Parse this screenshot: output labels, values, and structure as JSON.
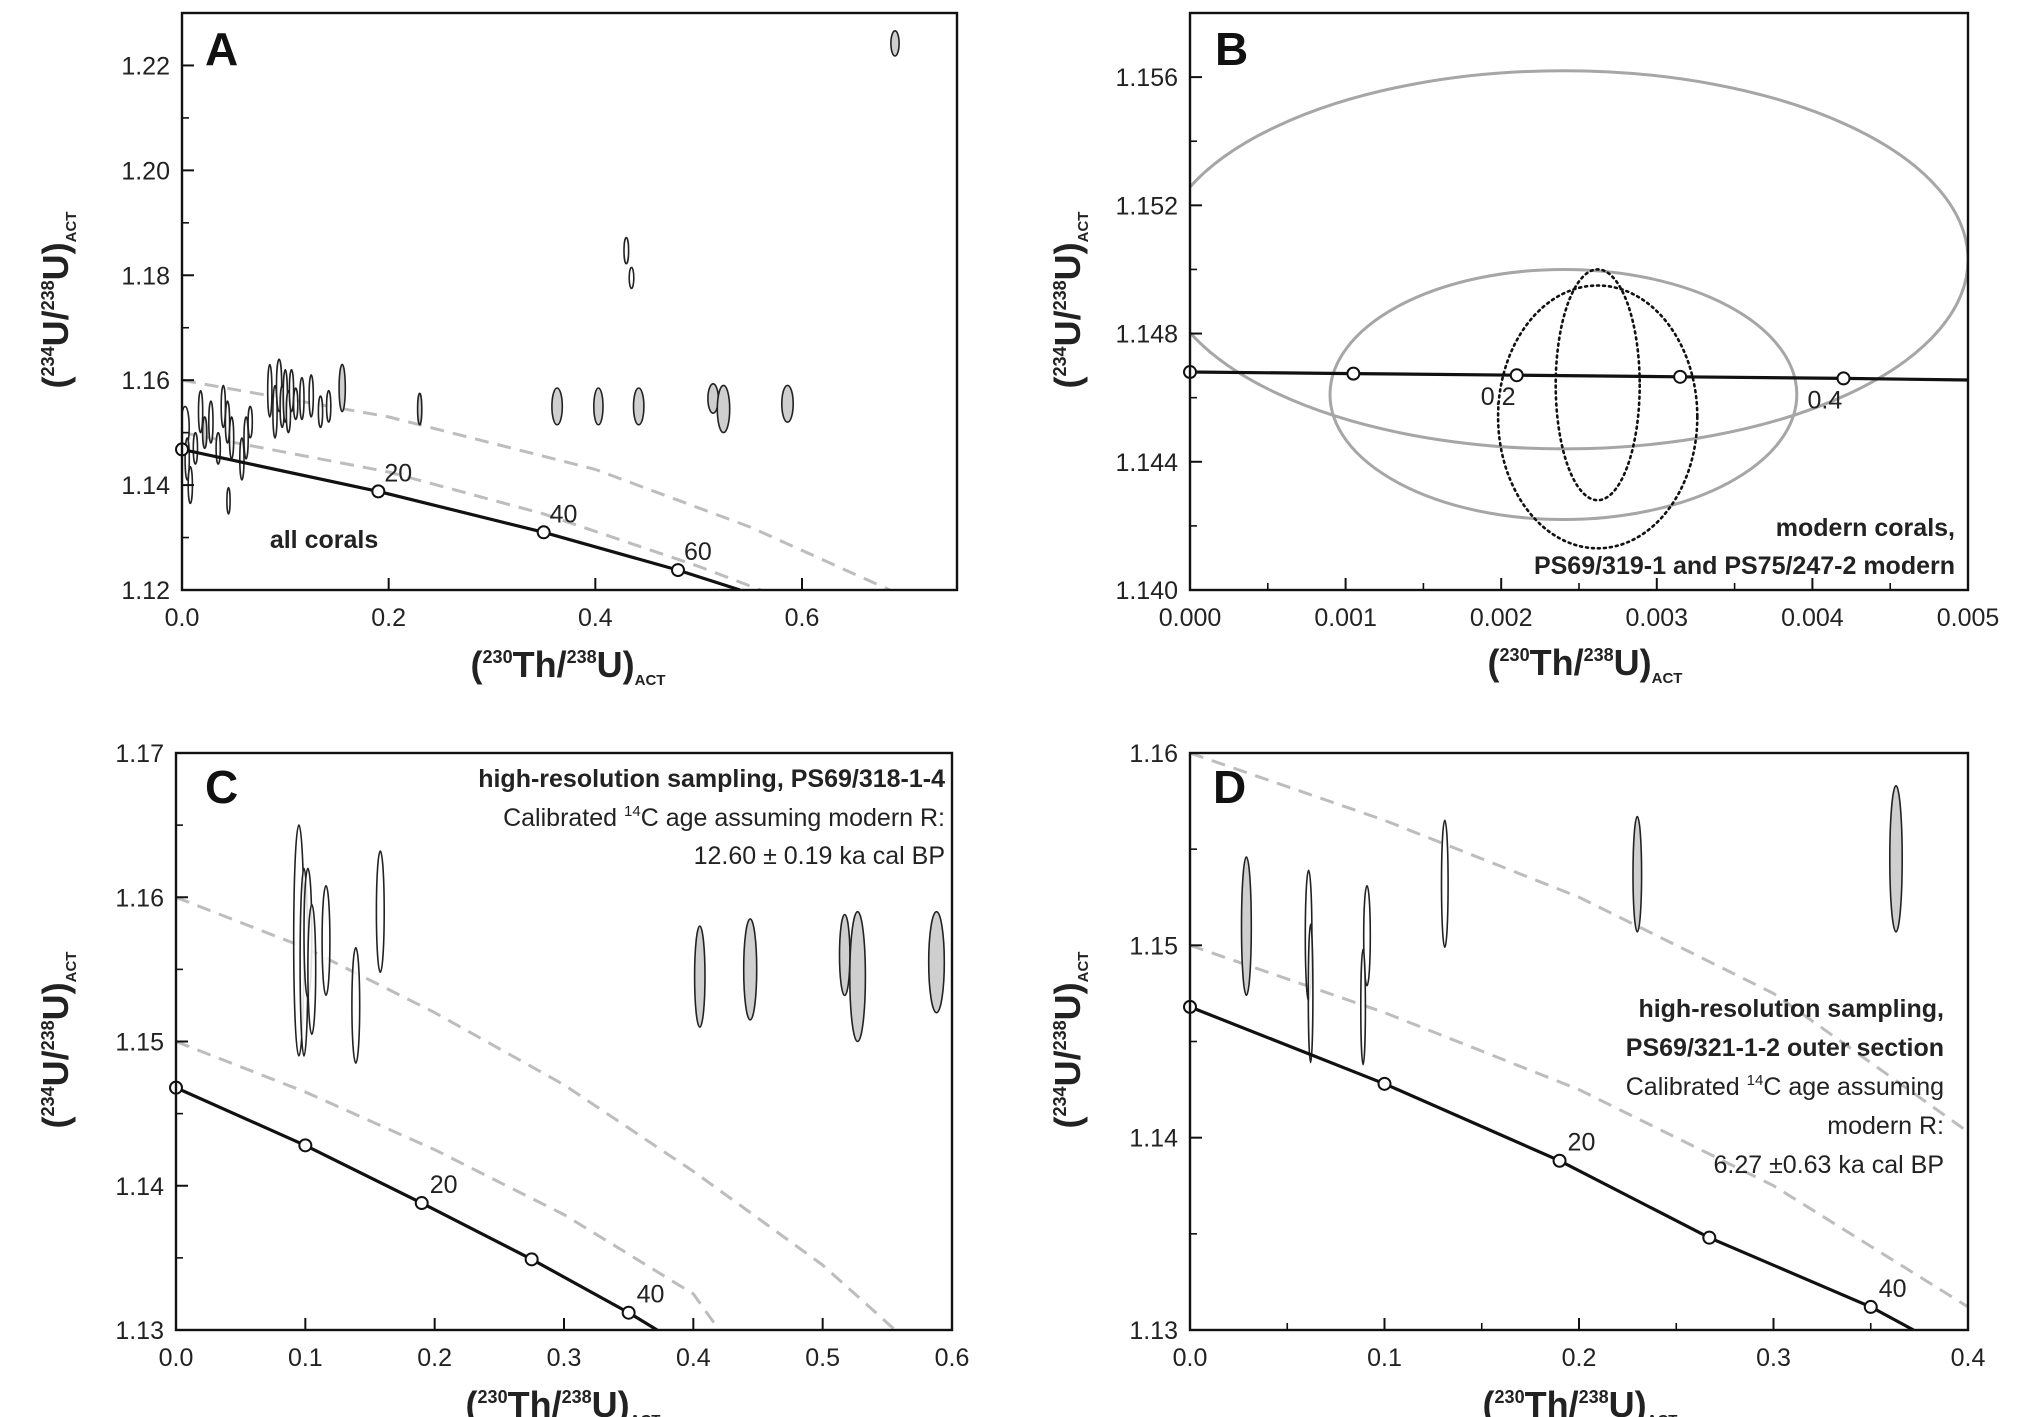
{
  "chart_data": [
    {
      "type": "scatter",
      "panel": "A",
      "xlabel_parts": [
        "(",
        "230",
        "Th/",
        "238",
        "U)",
        "ACT"
      ],
      "ylabel_parts": [
        "(",
        "234",
        "U/",
        "238",
        "U)",
        "ACT"
      ],
      "xlim": [
        0,
        0.75
      ],
      "ylim": [
        1.12,
        1.23
      ],
      "xticks": [
        0.0,
        0.2,
        0.4,
        0.6
      ],
      "xtick_labels": [
        "0.0",
        "0.2",
        "0.4",
        "0.6"
      ],
      "yticks": [
        1.12,
        1.14,
        1.16,
        1.18,
        1.2,
        1.22
      ],
      "ytick_labels": [
        "1.12",
        "1.14",
        "1.16",
        "1.18",
        "1.20",
        "1.22"
      ],
      "annotations": [
        {
          "text": "all corals",
          "bold": true,
          "x": 0.085,
          "y": 1.128
        }
      ],
      "evolution_curve": {
        "initial_ratio": 1.1468,
        "points": [
          {
            "x": 0.0,
            "y": 1.1468
          },
          {
            "x": 0.19,
            "y": 1.1388,
            "label": "20"
          },
          {
            "x": 0.35,
            "y": 1.131,
            "label": "40"
          },
          {
            "x": 0.48,
            "y": 1.1238,
            "label": "60"
          },
          {
            "x": 0.54,
            "y": 1.12
          }
        ]
      },
      "reference_curves": [
        [
          {
            "x": 0.0,
            "y": 1.16
          },
          {
            "x": 0.2,
            "y": 1.153
          },
          {
            "x": 0.4,
            "y": 1.143
          },
          {
            "x": 0.55,
            "y": 1.132
          },
          {
            "x": 0.685,
            "y": 1.12
          }
        ],
        [
          {
            "x": 0.0,
            "y": 1.15
          },
          {
            "x": 0.2,
            "y": 1.1425
          },
          {
            "x": 0.35,
            "y": 1.1345
          },
          {
            "x": 0.5,
            "y": 1.1245
          },
          {
            "x": 0.56,
            "y": 1.12
          }
        ]
      ],
      "ellipses": [
        {
          "x": 0.69,
          "y": 1.2242,
          "dx": 0.004,
          "dy": 0.0024,
          "filled": true
        },
        {
          "x": 0.43,
          "y": 1.1847,
          "dx": 0.0022,
          "dy": 0.0025,
          "filled": false
        },
        {
          "x": 0.435,
          "y": 1.1795,
          "dx": 0.0022,
          "dy": 0.002,
          "filled": false
        },
        {
          "x": 0.363,
          "y": 1.155,
          "dx": 0.005,
          "dy": 0.0035,
          "filled": true
        },
        {
          "x": 0.403,
          "y": 1.155,
          "dx": 0.0045,
          "dy": 0.0035,
          "filled": true
        },
        {
          "x": 0.442,
          "y": 1.155,
          "dx": 0.005,
          "dy": 0.0035,
          "filled": true
        },
        {
          "x": 0.514,
          "y": 1.1565,
          "dx": 0.005,
          "dy": 0.0028,
          "filled": true
        },
        {
          "x": 0.524,
          "y": 1.1545,
          "dx": 0.006,
          "dy": 0.0045,
          "filled": true
        },
        {
          "x": 0.586,
          "y": 1.1555,
          "dx": 0.0055,
          "dy": 0.0035,
          "filled": true
        },
        {
          "x": 0.23,
          "y": 1.1545,
          "dx": 0.002,
          "dy": 0.003,
          "filled": true
        },
        {
          "x": 0.155,
          "y": 1.1585,
          "dx": 0.003,
          "dy": 0.0045,
          "filled": true
        },
        {
          "x": 0.003,
          "y": 1.151,
          "dx": 0.004,
          "dy": 0.004,
          "filled": false
        },
        {
          "x": 0.005,
          "y": 1.145,
          "dx": 0.002,
          "dy": 0.004,
          "filled": false
        },
        {
          "x": 0.008,
          "y": 1.14,
          "dx": 0.002,
          "dy": 0.0035,
          "filled": false
        },
        {
          "x": 0.013,
          "y": 1.147,
          "dx": 0.002,
          "dy": 0.003,
          "filled": false
        },
        {
          "x": 0.018,
          "y": 1.154,
          "dx": 0.002,
          "dy": 0.004,
          "filled": false
        },
        {
          "x": 0.022,
          "y": 1.15,
          "dx": 0.002,
          "dy": 0.003,
          "filled": true
        },
        {
          "x": 0.028,
          "y": 1.152,
          "dx": 0.002,
          "dy": 0.004,
          "filled": false
        },
        {
          "x": 0.035,
          "y": 1.147,
          "dx": 0.002,
          "dy": 0.003,
          "filled": false
        },
        {
          "x": 0.04,
          "y": 1.155,
          "dx": 0.002,
          "dy": 0.004,
          "filled": false
        },
        {
          "x": 0.044,
          "y": 1.152,
          "dx": 0.002,
          "dy": 0.004,
          "filled": false
        },
        {
          "x": 0.048,
          "y": 1.149,
          "dx": 0.002,
          "dy": 0.004,
          "filled": false
        },
        {
          "x": 0.045,
          "y": 1.137,
          "dx": 0.0015,
          "dy": 0.0025,
          "filled": false
        },
        {
          "x": 0.058,
          "y": 1.145,
          "dx": 0.002,
          "dy": 0.004,
          "filled": false
        },
        {
          "x": 0.062,
          "y": 1.149,
          "dx": 0.002,
          "dy": 0.004,
          "filled": false
        },
        {
          "x": 0.066,
          "y": 1.152,
          "dx": 0.002,
          "dy": 0.003,
          "filled": false
        },
        {
          "x": 0.085,
          "y": 1.158,
          "dx": 0.002,
          "dy": 0.005,
          "filled": false
        },
        {
          "x": 0.09,
          "y": 1.154,
          "dx": 0.002,
          "dy": 0.005,
          "filled": false
        },
        {
          "x": 0.094,
          "y": 1.159,
          "dx": 0.0025,
          "dy": 0.005,
          "filled": false
        },
        {
          "x": 0.097,
          "y": 1.155,
          "dx": 0.002,
          "dy": 0.004,
          "filled": false
        },
        {
          "x": 0.1,
          "y": 1.157,
          "dx": 0.002,
          "dy": 0.005,
          "filled": false
        },
        {
          "x": 0.103,
          "y": 1.154,
          "dx": 0.002,
          "dy": 0.004,
          "filled": false
        },
        {
          "x": 0.106,
          "y": 1.158,
          "dx": 0.002,
          "dy": 0.004,
          "filled": false
        },
        {
          "x": 0.11,
          "y": 1.1555,
          "dx": 0.002,
          "dy": 0.003,
          "filled": false
        },
        {
          "x": 0.116,
          "y": 1.1565,
          "dx": 0.002,
          "dy": 0.004,
          "filled": false
        },
        {
          "x": 0.125,
          "y": 1.157,
          "dx": 0.002,
          "dy": 0.004,
          "filled": false
        },
        {
          "x": 0.134,
          "y": 1.154,
          "dx": 0.002,
          "dy": 0.003,
          "filled": false
        },
        {
          "x": 0.142,
          "y": 1.155,
          "dx": 0.002,
          "dy": 0.003,
          "filled": false
        }
      ]
    },
    {
      "type": "scatter",
      "panel": "B",
      "xlabel_parts": [
        "(",
        "230",
        "Th/",
        "238",
        "U)",
        "ACT"
      ],
      "ylabel_parts": [
        "(",
        "234",
        "U/",
        "238",
        "U)",
        "ACT"
      ],
      "xlim": [
        0,
        0.005
      ],
      "ylim": [
        1.14,
        1.158
      ],
      "xticks": [
        0.0,
        0.001,
        0.002,
        0.003,
        0.004,
        0.005
      ],
      "xtick_labels": [
        "0.000",
        "0.001",
        "0.002",
        "0.003",
        "0.004",
        "0.005"
      ],
      "yticks": [
        1.14,
        1.144,
        1.148,
        1.152,
        1.156
      ],
      "ytick_labels": [
        "1.140",
        "1.144",
        "1.148",
        "1.152",
        "1.156"
      ],
      "annotations": [
        {
          "text": "modern corals,",
          "bold": true
        },
        {
          "text": "PS69/319-1 and PS75/247-2 modern",
          "bold": true
        }
      ],
      "evolution_curve": {
        "initial_ratio": 1.1468,
        "points": [
          {
            "x": 0.0,
            "y": 1.1468
          },
          {
            "x": 0.00105,
            "y": 1.14675
          },
          {
            "x": 0.0021,
            "y": 1.1467,
            "label": "0.2"
          },
          {
            "x": 0.00315,
            "y": 1.14665
          },
          {
            "x": 0.0042,
            "y": 1.1466,
            "label": "0.4"
          },
          {
            "x": 0.005,
            "y": 1.14655
          }
        ]
      },
      "ellipses": [
        {
          "x": 0.0024,
          "y": 1.1503,
          "dx": 0.0026,
          "dy": 0.0059,
          "style": "gray"
        },
        {
          "x": 0.0024,
          "y": 1.1461,
          "dx": 0.0015,
          "dy": 0.0039,
          "style": "gray"
        },
        {
          "x": 0.00262,
          "y": 1.1464,
          "dx": 0.00027,
          "dy": 0.0036,
          "style": "dotted"
        },
        {
          "x": 0.00262,
          "y": 1.1454,
          "dx": 0.00064,
          "dy": 0.0041,
          "style": "dotted"
        }
      ]
    },
    {
      "type": "scatter",
      "panel": "C",
      "xlabel_parts": [
        "(",
        "230",
        "Th/",
        "238",
        "U)",
        "ACT"
      ],
      "ylabel_parts": [
        "(",
        "234",
        "U/",
        "238",
        "U)",
        "ACT"
      ],
      "xlim": [
        0,
        0.6
      ],
      "ylim": [
        1.13,
        1.17
      ],
      "xticks": [
        0.0,
        0.1,
        0.2,
        0.3,
        0.4,
        0.5,
        0.6
      ],
      "xtick_labels": [
        "0.0",
        "0.1",
        "0.2",
        "0.3",
        "0.4",
        "0.5",
        "0.6"
      ],
      "yticks": [
        1.13,
        1.14,
        1.15,
        1.16,
        1.17
      ],
      "ytick_labels": [
        "1.13",
        "1.14",
        "1.15",
        "1.16",
        "1.17"
      ],
      "annotations": [
        {
          "text": "high-resolution sampling, PS69/318-1-4",
          "bold": true
        },
        {
          "text": "Calibrated ",
          "sup": "14",
          "text2": "C age assuming modern R:",
          "bold": false
        },
        {
          "text": "12.60 ± 0.19 ka cal BP",
          "bold": false
        }
      ],
      "evolution_curve": {
        "initial_ratio": 1.1468,
        "points": [
          {
            "x": 0.0,
            "y": 1.1468
          },
          {
            "x": 0.1,
            "y": 1.1428
          },
          {
            "x": 0.19,
            "y": 1.1388,
            "label": "20"
          },
          {
            "x": 0.275,
            "y": 1.1349
          },
          {
            "x": 0.35,
            "y": 1.1312,
            "label": "40"
          },
          {
            "x": 0.372,
            "y": 1.13
          }
        ]
      },
      "reference_curves": [
        [
          {
            "x": 0.0,
            "y": 1.16
          },
          {
            "x": 0.1,
            "y": 1.1565
          },
          {
            "x": 0.2,
            "y": 1.152
          },
          {
            "x": 0.3,
            "y": 1.147
          },
          {
            "x": 0.4,
            "y": 1.141
          },
          {
            "x": 0.5,
            "y": 1.1345
          },
          {
            "x": 0.556,
            "y": 1.13
          }
        ],
        [
          {
            "x": 0.0,
            "y": 1.15
          },
          {
            "x": 0.1,
            "y": 1.1465
          },
          {
            "x": 0.2,
            "y": 1.1425
          },
          {
            "x": 0.3,
            "y": 1.138
          },
          {
            "x": 0.4,
            "y": 1.1325
          },
          {
            "x": 0.42,
            "y": 1.13
          }
        ]
      ],
      "ellipses": [
        {
          "x": 0.095,
          "y": 1.157,
          "dx": 0.004,
          "dy": 0.008,
          "filled": false
        },
        {
          "x": 0.099,
          "y": 1.1555,
          "dx": 0.003,
          "dy": 0.0065,
          "filled": false
        },
        {
          "x": 0.102,
          "y": 1.1575,
          "dx": 0.003,
          "dy": 0.0045,
          "filled": false
        },
        {
          "x": 0.105,
          "y": 1.155,
          "dx": 0.003,
          "dy": 0.0045,
          "filled": false
        },
        {
          "x": 0.116,
          "y": 1.157,
          "dx": 0.003,
          "dy": 0.0038,
          "filled": false
        },
        {
          "x": 0.139,
          "y": 1.1525,
          "dx": 0.003,
          "dy": 0.004,
          "filled": false
        },
        {
          "x": 0.158,
          "y": 1.159,
          "dx": 0.003,
          "dy": 0.0042,
          "filled": false
        },
        {
          "x": 0.405,
          "y": 1.1545,
          "dx": 0.004,
          "dy": 0.0035,
          "filled": true
        },
        {
          "x": 0.444,
          "y": 1.155,
          "dx": 0.005,
          "dy": 0.0035,
          "filled": true
        },
        {
          "x": 0.517,
          "y": 1.156,
          "dx": 0.004,
          "dy": 0.0028,
          "filled": true
        },
        {
          "x": 0.527,
          "y": 1.1545,
          "dx": 0.006,
          "dy": 0.0045,
          "filled": true
        },
        {
          "x": 0.588,
          "y": 1.1555,
          "dx": 0.006,
          "dy": 0.0035,
          "filled": true
        }
      ]
    },
    {
      "type": "scatter",
      "panel": "D",
      "xlabel_parts": [
        "(",
        "230",
        "Th/",
        "238",
        "U)",
        "ACT"
      ],
      "ylabel_parts": [
        "(",
        "234",
        "U/",
        "238",
        "U)",
        "ACT"
      ],
      "xlim": [
        0,
        0.4
      ],
      "ylim": [
        1.13,
        1.16
      ],
      "xticks": [
        0.0,
        0.1,
        0.2,
        0.3,
        0.4
      ],
      "xtick_labels": [
        "0.0",
        "0.1",
        "0.2",
        "0.3",
        "0.4"
      ],
      "yticks": [
        1.13,
        1.14,
        1.15,
        1.16
      ],
      "ytick_labels": [
        "1.13",
        "1.14",
        "1.15",
        "1.16"
      ],
      "annotations": [
        {
          "text": "high-resolution sampling,",
          "bold": true
        },
        {
          "text": "PS69/321-1-2 outer section",
          "bold": true
        },
        {
          "text": "Calibrated ",
          "sup": "14",
          "text2": "C age assuming",
          "bold": false
        },
        {
          "text": "modern R:",
          "bold": false
        },
        {
          "text": "6.27 ±0.63 ka cal BP",
          "bold": false
        }
      ],
      "evolution_curve": {
        "initial_ratio": 1.1468,
        "points": [
          {
            "x": 0.0,
            "y": 1.1468
          },
          {
            "x": 0.1,
            "y": 1.1428
          },
          {
            "x": 0.19,
            "y": 1.1388,
            "label": "20"
          },
          {
            "x": 0.267,
            "y": 1.1348
          },
          {
            "x": 0.35,
            "y": 1.1312,
            "label": "40"
          },
          {
            "x": 0.372,
            "y": 1.13
          }
        ]
      },
      "reference_curves": [
        [
          {
            "x": 0.0,
            "y": 1.16
          },
          {
            "x": 0.1,
            "y": 1.1565
          },
          {
            "x": 0.2,
            "y": 1.1525
          },
          {
            "x": 0.3,
            "y": 1.1475
          },
          {
            "x": 0.4,
            "y": 1.1403
          }
        ],
        [
          {
            "x": 0.0,
            "y": 1.15
          },
          {
            "x": 0.1,
            "y": 1.1465
          },
          {
            "x": 0.2,
            "y": 1.1425
          },
          {
            "x": 0.3,
            "y": 1.1375
          },
          {
            "x": 0.4,
            "y": 1.1312
          }
        ]
      ],
      "ellipses": [
        {
          "x": 0.029,
          "y": 1.151,
          "dx": 0.0025,
          "dy": 0.0036,
          "filled": true
        },
        {
          "x": 0.061,
          "y": 1.1505,
          "dx": 0.0017,
          "dy": 0.0034,
          "filled": false
        },
        {
          "x": 0.062,
          "y": 1.1475,
          "dx": 0.0012,
          "dy": 0.0036,
          "filled": false
        },
        {
          "x": 0.091,
          "y": 1.1505,
          "dx": 0.0017,
          "dy": 0.0026,
          "filled": false
        },
        {
          "x": 0.089,
          "y": 1.1468,
          "dx": 0.0012,
          "dy": 0.003,
          "filled": false
        },
        {
          "x": 0.131,
          "y": 1.1532,
          "dx": 0.0017,
          "dy": 0.0033,
          "filled": false
        },
        {
          "x": 0.23,
          "y": 1.1537,
          "dx": 0.0022,
          "dy": 0.003,
          "filled": true
        },
        {
          "x": 0.363,
          "y": 1.1545,
          "dx": 0.0032,
          "dy": 0.0038,
          "filled": true
        }
      ]
    }
  ]
}
